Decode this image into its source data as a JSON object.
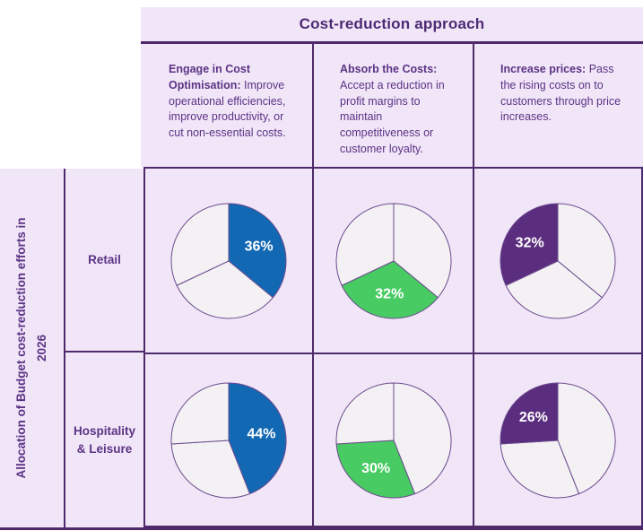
{
  "theme": {
    "page_background": "#ffffff",
    "panel_background": "#f1e5f8",
    "grid_line_color": "#4e2a6a",
    "text_color": "#5b3384",
    "pie_label_text_color": "#ffffff"
  },
  "chart_data": {
    "type": "pie",
    "title": "Cost-reduction approach",
    "row_axis_label": "Allocation of Budget cost-reduction efforts in 2026",
    "legend_position": "none",
    "columns": [
      {
        "key": "cost-optimisation",
        "heading": "Engage in Cost Optimisation:",
        "description": "Improve operational efficiencies, improve productivity, or cut non-essential costs.",
        "accent_color": "#1268b3"
      },
      {
        "key": "absorb-costs",
        "heading": "Absorb the Costs:",
        "description": "Accept a reduction in profit margins to maintain competitiveness or customer loyalty.",
        "accent_color": "#47cb62"
      },
      {
        "key": "increase-prices",
        "heading": "Increase prices:",
        "description": "Pass the rising costs on to customers through price increases.",
        "accent_color": "#5a2d7e"
      }
    ],
    "rows": [
      {
        "label": "Retail",
        "values_by_column": [
          36,
          32,
          32
        ],
        "value_labels": [
          "36%",
          "32%",
          "32%"
        ]
      },
      {
        "label": "Hospitality & Leisure",
        "values_by_column": [
          44,
          30,
          26
        ],
        "value_labels": [
          "44%",
          "30%",
          "26%"
        ]
      }
    ],
    "colors": {
      "other_slice_fill": "#f3f1f3",
      "slice_border": "#6b4b8e"
    }
  }
}
